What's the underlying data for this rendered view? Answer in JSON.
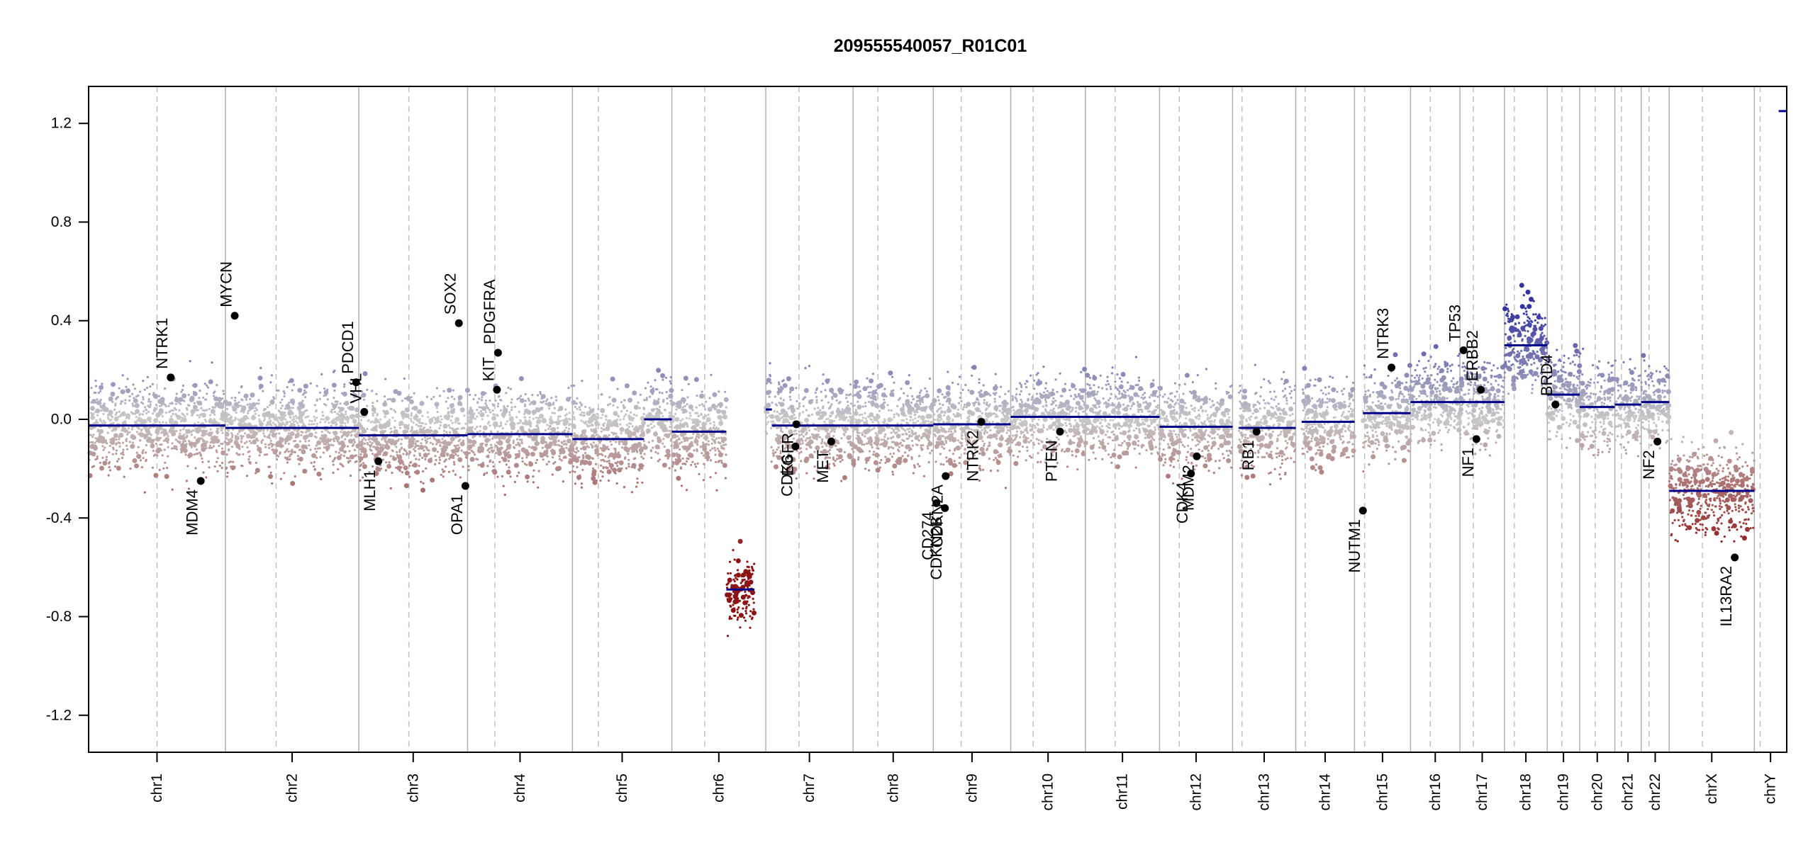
{
  "chart_data": {
    "type": "scatter",
    "title": "209555540057_R01C01",
    "xlabel": "",
    "ylabel": "",
    "ylim": [
      -1.35,
      1.35
    ],
    "y_ticks": [
      -1.2,
      -0.8,
      -0.4,
      0.0,
      0.4,
      0.8,
      1.2
    ],
    "y_tick_labels": [
      "-1.2",
      "-0.8",
      "-0.4",
      "0.0",
      "0.4",
      "0.8",
      "1.2"
    ],
    "colors": {
      "gain": "#3a3aa0",
      "loss": "#8b1a1a",
      "neutral": "#c8c8c8",
      "segment": "#00008b",
      "boundary": "#b0b0b0",
      "centromere": "#c0c0c0"
    },
    "chromosomes": [
      {
        "name": "chr1",
        "length": 249,
        "centromere": 0.5
      },
      {
        "name": "chr2",
        "length": 243,
        "centromere": 0.38
      },
      {
        "name": "chr3",
        "length": 198,
        "centromere": 0.46
      },
      {
        "name": "chr4",
        "length": 191,
        "centromere": 0.26
      },
      {
        "name": "chr5",
        "length": 181,
        "centromere": 0.26
      },
      {
        "name": "chr6",
        "length": 171,
        "centromere": 0.35
      },
      {
        "name": "chr7",
        "length": 159,
        "centromere": 0.38
      },
      {
        "name": "chr8",
        "length": 146,
        "centromere": 0.31
      },
      {
        "name": "chr9",
        "length": 141,
        "centromere": 0.36
      },
      {
        "name": "chr10",
        "length": 136,
        "centromere": 0.3
      },
      {
        "name": "chr11",
        "length": 135,
        "centromere": 0.4
      },
      {
        "name": "chr12",
        "length": 133,
        "centromere": 0.27
      },
      {
        "name": "chr13",
        "length": 115,
        "centromere": 0.15
      },
      {
        "name": "chr14",
        "length": 107,
        "centromere": 0.16
      },
      {
        "name": "chr15",
        "length": 102,
        "centromere": 0.18
      },
      {
        "name": "chr16",
        "length": 90,
        "centromere": 0.4
      },
      {
        "name": "chr17",
        "length": 81,
        "centromere": 0.3
      },
      {
        "name": "chr18",
        "length": 78,
        "centromere": 0.23
      },
      {
        "name": "chr19",
        "length": 59,
        "centromere": 0.45
      },
      {
        "name": "chr20",
        "length": 64,
        "centromere": 0.44
      },
      {
        "name": "chr21",
        "length": 48,
        "centromere": 0.25
      },
      {
        "name": "chr22",
        "length": 51,
        "centromere": 0.28
      },
      {
        "name": "chrX",
        "length": 155,
        "centromere": 0.39
      },
      {
        "name": "chrY",
        "length": 59,
        "centromere": 0.18
      }
    ],
    "segments": [
      {
        "chr": "chr1",
        "start": 0.0,
        "end": 1.0,
        "value": -0.025
      },
      {
        "chr": "chr2",
        "start": 0.0,
        "end": 1.0,
        "value": -0.035
      },
      {
        "chr": "chr3",
        "start": 0.0,
        "end": 1.0,
        "value": -0.065
      },
      {
        "chr": "chr4",
        "start": 0.0,
        "end": 1.0,
        "value": -0.06
      },
      {
        "chr": "chr5",
        "start": 0.0,
        "end": 0.72,
        "value": -0.08
      },
      {
        "chr": "chr5",
        "start": 0.72,
        "end": 1.0,
        "value": 0.0
      },
      {
        "chr": "chr6",
        "start": 0.0,
        "end": 0.58,
        "value": -0.05
      },
      {
        "chr": "chr6",
        "start": 0.58,
        "end": 0.88,
        "value": -0.69
      },
      {
        "chr": "chr7",
        "start": 0.0,
        "end": 0.07,
        "value": 0.04
      },
      {
        "chr": "chr7",
        "start": 0.07,
        "end": 1.0,
        "value": -0.025
      },
      {
        "chr": "chr8",
        "start": 0.0,
        "end": 1.0,
        "value": -0.025
      },
      {
        "chr": "chr9",
        "start": 0.0,
        "end": 1.0,
        "value": -0.02
      },
      {
        "chr": "chr10",
        "start": 0.0,
        "end": 1.0,
        "value": 0.01
      },
      {
        "chr": "chr11",
        "start": 0.0,
        "end": 1.0,
        "value": 0.01
      },
      {
        "chr": "chr12",
        "start": 0.0,
        "end": 1.0,
        "value": -0.03
      },
      {
        "chr": "chr13",
        "start": 0.1,
        "end": 1.0,
        "value": -0.035
      },
      {
        "chr": "chr14",
        "start": 0.1,
        "end": 1.0,
        "value": -0.01
      },
      {
        "chr": "chr15",
        "start": 0.15,
        "end": 1.0,
        "value": 0.025
      },
      {
        "chr": "chr16",
        "start": 0.0,
        "end": 1.0,
        "value": 0.07
      },
      {
        "chr": "chr17",
        "start": 0.0,
        "end": 1.0,
        "value": 0.07
      },
      {
        "chr": "chr18",
        "start": 0.0,
        "end": 1.0,
        "value": 0.3
      },
      {
        "chr": "chr19",
        "start": 0.0,
        "end": 1.0,
        "value": 0.1
      },
      {
        "chr": "chr20",
        "start": 0.0,
        "end": 1.0,
        "value": 0.05
      },
      {
        "chr": "chr21",
        "start": 0.0,
        "end": 1.0,
        "value": 0.06
      },
      {
        "chr": "chr22",
        "start": 0.0,
        "end": 1.0,
        "value": 0.07
      },
      {
        "chr": "chrX",
        "start": 0.0,
        "end": 1.0,
        "value": -0.29
      },
      {
        "chr": "chrY",
        "start": 0.75,
        "end": 1.0,
        "value": 1.25
      }
    ],
    "genes": [
      {
        "name": "NTRK1",
        "chr": "chr1",
        "pos": 0.6,
        "value": 0.17
      },
      {
        "name": "MDM4",
        "chr": "chr1",
        "pos": 0.82,
        "value": -0.25
      },
      {
        "name": "MYCN",
        "chr": "chr2",
        "pos": 0.07,
        "value": 0.42
      },
      {
        "name": "PDCD1",
        "chr": "chr2",
        "pos": 0.98,
        "value": 0.15
      },
      {
        "name": "VHL",
        "chr": "chr3",
        "pos": 0.05,
        "value": 0.03
      },
      {
        "name": "MLH1",
        "chr": "chr3",
        "pos": 0.18,
        "value": -0.17
      },
      {
        "name": "SOX2",
        "chr": "chr3",
        "pos": 0.92,
        "value": 0.39
      },
      {
        "name": "OPA1",
        "chr": "chr3",
        "pos": 0.98,
        "value": -0.27
      },
      {
        "name": "KIT",
        "chr": "chr4",
        "pos": 0.28,
        "value": 0.12
      },
      {
        "name": "PDGFRA",
        "chr": "chr4",
        "pos": 0.29,
        "value": 0.27
      },
      {
        "name": "EGFR",
        "chr": "chr7",
        "pos": 0.35,
        "value": -0.02
      },
      {
        "name": "CDK6",
        "chr": "chr7",
        "pos": 0.34,
        "value": -0.11
      },
      {
        "name": "MET",
        "chr": "chr7",
        "pos": 0.75,
        "value": -0.09
      },
      {
        "name": "CD274",
        "chr": "chr9",
        "pos": 0.04,
        "value": -0.34
      },
      {
        "name": "CDKN2B",
        "chr": "chr9",
        "pos": 0.15,
        "value": -0.36
      },
      {
        "name": "CDKN2A",
        "chr": "chr9",
        "pos": 0.16,
        "value": -0.23
      },
      {
        "name": "NTRK2",
        "chr": "chr9",
        "pos": 0.62,
        "value": -0.01
      },
      {
        "name": "PTEN",
        "chr": "chr10",
        "pos": 0.66,
        "value": -0.05
      },
      {
        "name": "CDK4",
        "chr": "chr12",
        "pos": 0.43,
        "value": -0.22
      },
      {
        "name": "MDM2",
        "chr": "chr12",
        "pos": 0.51,
        "value": -0.15
      },
      {
        "name": "RB1",
        "chr": "chr13",
        "pos": 0.38,
        "value": -0.05
      },
      {
        "name": "NUTM1",
        "chr": "chr15",
        "pos": 0.15,
        "value": -0.37
      },
      {
        "name": "NTRK3",
        "chr": "chr15",
        "pos": 0.66,
        "value": 0.21
      },
      {
        "name": "TP53",
        "chr": "chr17",
        "pos": 0.08,
        "value": 0.28
      },
      {
        "name": "NF1",
        "chr": "chr17",
        "pos": 0.37,
        "value": -0.08
      },
      {
        "name": "ERBB2",
        "chr": "chr17",
        "pos": 0.47,
        "value": 0.12
      },
      {
        "name": "BRD4",
        "chr": "chr19",
        "pos": 0.25,
        "value": 0.06
      },
      {
        "name": "NF2",
        "chr": "chr22",
        "pos": 0.58,
        "value": -0.09
      },
      {
        "name": "IL13RA2",
        "chr": "chrX",
        "pos": 0.77,
        "value": -0.56
      }
    ]
  }
}
